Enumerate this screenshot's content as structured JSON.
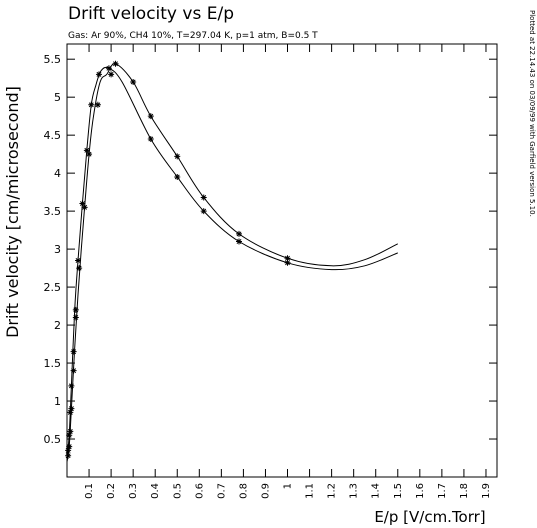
{
  "chart_data": {
    "type": "line",
    "title": "Drift velocity vs E/p",
    "subtitle": "Gas: Ar 90%, CH4 10%, T=297.04 K, p=1 atm, B=0.5 T",
    "side_note": "Plotted at 22.14.43 on 03/09/99 with Garfield version 5.10.",
    "xlabel": "E/p [V/cm.Torr]",
    "ylabel": "Drift velocity [cm/microsecond]",
    "xlim": [
      0,
      1.95
    ],
    "ylim": [
      0,
      5.7
    ],
    "x_ticks": [
      {
        "v": 0.1,
        "label": "0.1"
      },
      {
        "v": 0.2,
        "label": "0.2"
      },
      {
        "v": 0.3,
        "label": "0.3"
      },
      {
        "v": 0.4,
        "label": "0.4"
      },
      {
        "v": 0.5,
        "label": "0.5"
      },
      {
        "v": 0.6,
        "label": "0.6"
      },
      {
        "v": 0.7,
        "label": "0.7"
      },
      {
        "v": 0.8,
        "label": "0.8"
      },
      {
        "v": 0.9,
        "label": "0.9"
      },
      {
        "v": 1.0,
        "label": "1"
      },
      {
        "v": 1.1,
        "label": "1.1"
      },
      {
        "v": 1.2,
        "label": "1.2"
      },
      {
        "v": 1.3,
        "label": "1.3"
      },
      {
        "v": 1.4,
        "label": "1.4"
      },
      {
        "v": 1.5,
        "label": "1.5"
      },
      {
        "v": 1.6,
        "label": "1.6"
      },
      {
        "v": 1.7,
        "label": "1.7"
      },
      {
        "v": 1.8,
        "label": "1.8"
      },
      {
        "v": 1.9,
        "label": "1.9"
      }
    ],
    "y_ticks": [
      {
        "v": 0.5,
        "label": "0.5"
      },
      {
        "v": 1.0,
        "label": "1"
      },
      {
        "v": 1.5,
        "label": "1.5"
      },
      {
        "v": 2.0,
        "label": "2"
      },
      {
        "v": 2.5,
        "label": "2.5"
      },
      {
        "v": 3.0,
        "label": "3"
      },
      {
        "v": 3.5,
        "label": "3.5"
      },
      {
        "v": 4.0,
        "label": "4"
      },
      {
        "v": 4.5,
        "label": "4.5"
      },
      {
        "v": 5.0,
        "label": "5"
      },
      {
        "v": 5.5,
        "label": "5.5"
      }
    ],
    "grid": false,
    "series": [
      {
        "points": [
          [
            0.0,
            0.25
          ],
          [
            0.01,
            0.55
          ],
          [
            0.02,
            1.2
          ],
          [
            0.035,
            2.2
          ],
          [
            0.05,
            2.85
          ],
          [
            0.07,
            3.6
          ],
          [
            0.09,
            4.3
          ],
          [
            0.11,
            4.9
          ],
          [
            0.13,
            5.15
          ],
          [
            0.155,
            5.35
          ],
          [
            0.19,
            5.38
          ],
          [
            0.25,
            5.2
          ],
          [
            0.38,
            4.45
          ],
          [
            0.5,
            3.95
          ],
          [
            0.62,
            3.5
          ],
          [
            0.78,
            3.1
          ],
          [
            1.0,
            2.82
          ],
          [
            1.2,
            2.73
          ],
          [
            1.35,
            2.78
          ],
          [
            1.5,
            2.95
          ]
        ],
        "markers": [
          [
            0.005,
            0.35
          ],
          [
            0.01,
            0.55
          ],
          [
            0.015,
            0.85
          ],
          [
            0.02,
            1.2
          ],
          [
            0.03,
            1.65
          ],
          [
            0.04,
            2.2
          ],
          [
            0.05,
            2.85
          ],
          [
            0.07,
            3.6
          ],
          [
            0.09,
            4.3
          ],
          [
            0.11,
            4.9
          ],
          [
            0.145,
            5.3
          ],
          [
            0.19,
            5.38
          ],
          [
            0.38,
            4.45
          ],
          [
            0.5,
            3.95
          ],
          [
            0.62,
            3.5
          ],
          [
            0.78,
            3.1
          ],
          [
            1.0,
            2.82
          ]
        ]
      },
      {
        "points": [
          [
            0.0,
            0.2
          ],
          [
            0.01,
            0.4
          ],
          [
            0.02,
            0.9
          ],
          [
            0.035,
            1.7
          ],
          [
            0.05,
            2.4
          ],
          [
            0.065,
            3.0
          ],
          [
            0.08,
            3.55
          ],
          [
            0.1,
            4.25
          ],
          [
            0.12,
            4.75
          ],
          [
            0.15,
            5.2
          ],
          [
            0.18,
            5.3
          ],
          [
            0.22,
            5.44
          ],
          [
            0.3,
            5.2
          ],
          [
            0.38,
            4.75
          ],
          [
            0.5,
            4.22
          ],
          [
            0.62,
            3.68
          ],
          [
            0.78,
            3.2
          ],
          [
            1.0,
            2.88
          ],
          [
            1.2,
            2.78
          ],
          [
            1.35,
            2.86
          ],
          [
            1.5,
            3.07
          ]
        ],
        "markers": [
          [
            0.005,
            0.28
          ],
          [
            0.01,
            0.4
          ],
          [
            0.015,
            0.6
          ],
          [
            0.02,
            0.9
          ],
          [
            0.03,
            1.4
          ],
          [
            0.04,
            2.1
          ],
          [
            0.055,
            2.75
          ],
          [
            0.08,
            3.55
          ],
          [
            0.1,
            4.25
          ],
          [
            0.14,
            4.9
          ],
          [
            0.2,
            5.3
          ],
          [
            0.22,
            5.44
          ],
          [
            0.3,
            5.2
          ],
          [
            0.38,
            4.75
          ],
          [
            0.5,
            4.22
          ],
          [
            0.62,
            3.68
          ],
          [
            0.78,
            3.2
          ],
          [
            1.0,
            2.88
          ]
        ]
      }
    ]
  }
}
